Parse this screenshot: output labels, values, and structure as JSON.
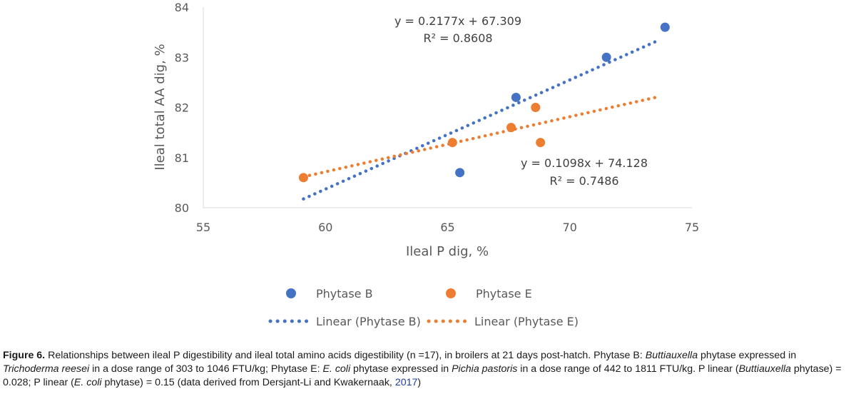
{
  "colors": {
    "phytase_b": "#4472C4",
    "phytase_e": "#ED7D31",
    "axis": "#d9d9d9"
  },
  "chart_data": {
    "type": "scatter",
    "title": "",
    "xlabel": "Ileal P dig, %",
    "ylabel": "Ileal total AA dig, %",
    "xlim": [
      55,
      75
    ],
    "ylim": [
      80,
      84
    ],
    "x_ticks": [
      "55",
      "60",
      "65",
      "70",
      "75"
    ],
    "y_ticks": [
      "80",
      "81",
      "82",
      "83",
      "84"
    ],
    "series": [
      {
        "name": "Phytase B",
        "points": [
          [
            65.5,
            80.7
          ],
          [
            67.8,
            82.2
          ],
          [
            71.5,
            83.0
          ],
          [
            73.9,
            83.6
          ]
        ],
        "trendline": {
          "name": "Linear (Phytase B)",
          "slope": 0.2177,
          "intercept": 67.309,
          "x_range": [
            59.1,
            73.7
          ],
          "equation": "y = 0.2177x + 67.309",
          "r2": "R² = 0.8608"
        }
      },
      {
        "name": "Phytase E",
        "points": [
          [
            59.1,
            80.6
          ],
          [
            65.2,
            81.3
          ],
          [
            67.6,
            81.6
          ],
          [
            68.6,
            82.0
          ],
          [
            68.8,
            81.3
          ]
        ],
        "trendline": {
          "name": "Linear (Phytase E)",
          "slope": 0.1098,
          "intercept": 74.128,
          "x_range": [
            59.1,
            73.7
          ],
          "equation": "y = 0.1098x + 74.128",
          "r2": "R² = 0.7486"
        }
      }
    ],
    "legend": {
      "placement": "bottom",
      "items": [
        "Phytase B",
        "Phytase E",
        "Linear (Phytase B)",
        "Linear (Phytase E)"
      ]
    }
  },
  "caption": {
    "label": "Figure 6.",
    "part1": " Relationships between ileal P digestibility and ileal total amino acids digestibility (n =17), in broilers at 21 days post-hatch. Phytase B: ",
    "species_b": "Buttiauxella",
    "part2": " phytase expressed in ",
    "host_b": "Trichoderma reesei",
    "part3": " in a dose range of 303 to 1046 FTU/kg; Phytase E: ",
    "species_e": "E. coli",
    "part4": " phytase expressed in ",
    "host_e": "Pichia pastoris",
    "part5": " in a dose range of 442 to 1811 FTU/kg. P linear (",
    "species_b2": "Buttiauxella",
    "part6": " phytase) = 0.028; P linear (",
    "species_e2": "E. coli",
    "part7": " phytase) = 0.15 (data derived from Dersjant-Li and Kwakernaak, ",
    "year_link": "2017",
    "part8": ")"
  }
}
